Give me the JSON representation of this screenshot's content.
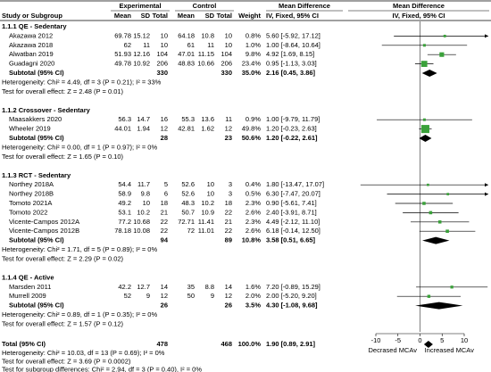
{
  "header": {
    "experimental": "Experimental",
    "control": "Control",
    "md_col": "Mean Difference",
    "md_plot": "Mean Difference",
    "columns": [
      "Study or Subgroup",
      "Mean",
      "SD",
      "Total",
      "Mean",
      "SD",
      "Total",
      "Weight",
      "IV, Fixed, 95% CI",
      "IV, Fixed, 95% CI"
    ]
  },
  "groups": [
    {
      "title": "1.1.1 QE - Sedentary",
      "studies": [
        {
          "name": "Akazawa 2012",
          "exp": [
            69.78,
            15.12,
            10
          ],
          "ctl": [
            64.18,
            10.8,
            10
          ],
          "weight": {
            "value": 0.8,
            "label": "0.8%"
          },
          "md": {
            "value": 5.6,
            "label": "5.60 [-5.92, 17.12]"
          },
          "ci": [
            -5.92,
            17.12
          ]
        },
        {
          "name": "Akazawa 2018",
          "exp": [
            62,
            11,
            10
          ],
          "ctl": [
            61,
            11,
            10
          ],
          "weight": {
            "value": 1.0,
            "label": "1.0%"
          },
          "md": {
            "value": 1,
            "label": "1.00 [-8.64, 10.64]"
          },
          "ci": [
            -8.64,
            10.64
          ]
        },
        {
          "name": "Alwatban 2019",
          "exp": [
            51.93,
            12.16,
            104
          ],
          "ctl": [
            47.01,
            11.15,
            104
          ],
          "weight": {
            "value": 9.8,
            "label": "9.8%"
          },
          "md": {
            "value": 4.92,
            "label": "4.92 [1.69, 8.15]"
          },
          "ci": [
            1.69,
            8.15
          ]
        },
        {
          "name": "Guadagni 2020",
          "exp": [
            49.78,
            10.92,
            206
          ],
          "ctl": [
            48.83,
            10.66,
            206
          ],
          "weight": {
            "value": 23.4,
            "label": "23.4%"
          },
          "md": {
            "value": 0.95,
            "label": "0.95 [-1.13, 3.03]"
          },
          "ci": [
            -1.13,
            3.03
          ]
        }
      ],
      "subtotal": {
        "label": "Subtotal (95% CI)",
        "exp_total": 330,
        "ctl_total": 330,
        "weight": {
          "value": 35.0,
          "label": "35.0%"
        },
        "md": {
          "value": 2.16,
          "label": "2.16 [0.45, 3.86]"
        },
        "ci": [
          0.45,
          3.86
        ]
      },
      "heterogeneity": "Heterogeneity: Chi² = 4.49, df = 3 (P = 0.21); I² = 33%",
      "overall_test": "Test for overall effect: Z = 2.48 (P = 0.01)"
    },
    {
      "title": "1.1.2 Crossover - Sedentary",
      "studies": [
        {
          "name": "Maasakkers 2020",
          "exp": [
            56.3,
            14.7,
            16
          ],
          "ctl": [
            55.3,
            13.6,
            11
          ],
          "weight": {
            "value": 0.9,
            "label": "0.9%"
          },
          "md": {
            "value": 1,
            "label": "1.00 [-9.79, 11.79]"
          },
          "ci": [
            -9.79,
            11.79
          ]
        },
        {
          "name": "Wheeler 2019",
          "exp": [
            44.01,
            1.94,
            12
          ],
          "ctl": [
            42.81,
            1.62,
            12
          ],
          "weight": {
            "value": 49.8,
            "label": "49.8%"
          },
          "md": {
            "value": 1.2,
            "label": "1.20 [-0.23, 2.63]"
          },
          "ci": [
            -0.23,
            2.63
          ]
        }
      ],
      "subtotal": {
        "label": "Subtotal (95% CI)",
        "exp_total": 28,
        "ctl_total": 23,
        "weight": {
          "value": 50.6,
          "label": "50.6%"
        },
        "md": {
          "value": 1.2,
          "label": "1.20 [-0.22, 2.61]"
        },
        "ci": [
          -0.22,
          2.61
        ]
      },
      "heterogeneity": "Heterogeneity: Chi² = 0.00, df = 1 (P = 0.97); I² = 0%",
      "overall_test": "Test for overall effect: Z = 1.65 (P = 0.10)"
    },
    {
      "title": "1.1.3 RCT - Sedentary",
      "studies": [
        {
          "name": "Northey 2018A",
          "exp": [
            54.4,
            11.7,
            5
          ],
          "ctl": [
            52.6,
            10,
            3
          ],
          "weight": {
            "value": 0.4,
            "label": "0.4%"
          },
          "md": {
            "value": 1.8,
            "label": "1.80 [-13.47, 17.07]"
          },
          "ci": [
            -13.47,
            17.07
          ]
        },
        {
          "name": "Northey 2018B",
          "exp": [
            58.9,
            9.8,
            6
          ],
          "ctl": [
            52.6,
            10,
            3
          ],
          "weight": {
            "value": 0.5,
            "label": "0.5%"
          },
          "md": {
            "value": 6.3,
            "label": "6.30 [-7.47, 20.07]"
          },
          "ci": [
            -7.47,
            20.07
          ]
        },
        {
          "name": "Tomoto 2021A",
          "exp": [
            49.2,
            10,
            18
          ],
          "ctl": [
            48.3,
            10.2,
            18
          ],
          "weight": {
            "value": 2.3,
            "label": "2.3%"
          },
          "md": {
            "value": 0.9,
            "label": "0.90 [-5.61, 7.41]"
          },
          "ci": [
            -5.61,
            7.41
          ]
        },
        {
          "name": "Tomoto 2022",
          "exp": [
            53.1,
            10.2,
            21
          ],
          "ctl": [
            50.7,
            10.9,
            22
          ],
          "weight": {
            "value": 2.6,
            "label": "2.6%"
          },
          "md": {
            "value": 2.4,
            "label": "2.40 [-3.91, 8.71]"
          },
          "ci": [
            -3.91,
            8.71
          ]
        },
        {
          "name": "Vicente-Campos 2012A",
          "exp": [
            77.2,
            10.68,
            22
          ],
          "ctl": [
            72.71,
            11.41,
            21
          ],
          "weight": {
            "value": 2.3,
            "label": "2.3%"
          },
          "md": {
            "value": 4.49,
            "label": "4.49 [-2.12, 11.10]"
          },
          "ci": [
            -2.12,
            11.1
          ]
        },
        {
          "name": "Vicente-Campos 2012B",
          "exp": [
            78.18,
            10.08,
            22
          ],
          "ctl": [
            72,
            11.01,
            22
          ],
          "weight": {
            "value": 2.6,
            "label": "2.6%"
          },
          "md": {
            "value": 6.18,
            "label": "6.18 [-0.14, 12.50]"
          },
          "ci": [
            -0.14,
            12.5
          ]
        }
      ],
      "subtotal": {
        "label": "Subtotal (95% CI)",
        "exp_total": 94,
        "ctl_total": 89,
        "weight": {
          "value": 10.8,
          "label": "10.8%"
        },
        "md": {
          "value": 3.58,
          "label": "3.58 [0.51, 6.65]"
        },
        "ci": [
          0.51,
          6.65
        ]
      },
      "heterogeneity": "Heterogeneity: Chi² = 1.71, df = 5 (P = 0.89); I² = 0%",
      "overall_test": "Test for overall effect: Z = 2.29 (P = 0.02)"
    },
    {
      "title": "1.1.4 QE - Active",
      "studies": [
        {
          "name": "Marsden 2011",
          "exp": [
            42.2,
            12.7,
            14
          ],
          "ctl": [
            35,
            8.8,
            14
          ],
          "weight": {
            "value": 1.6,
            "label": "1.6%"
          },
          "md": {
            "value": 7.2,
            "label": "7.20 [-0.89, 15.29]"
          },
          "ci": [
            -0.89,
            15.29
          ]
        },
        {
          "name": "Murrell 2009",
          "exp": [
            52,
            9,
            12
          ],
          "ctl": [
            50,
            9,
            12
          ],
          "weight": {
            "value": 2.0,
            "label": "2.0%"
          },
          "md": {
            "value": 2,
            "label": "2.00 [-5.20, 9.20]"
          },
          "ci": [
            -5.2,
            9.2
          ]
        }
      ],
      "subtotal": {
        "label": "Subtotal (95% CI)",
        "exp_total": 26,
        "ctl_total": 26,
        "weight": {
          "value": 3.5,
          "label": "3.5%"
        },
        "md": {
          "value": 4.3,
          "label": "4.30 [-1.08, 9.68]"
        },
        "ci": [
          -1.08,
          9.68
        ]
      },
      "heterogeneity": "Heterogeneity: Chi² = 0.89, df = 1 (P = 0.35); I² = 0%",
      "overall_test": "Test for overall effect: Z = 1.57 (P = 0.12)"
    }
  ],
  "total": {
    "label": "Total (95% CI)",
    "exp_total": 478,
    "ctl_total": 468,
    "weight": {
      "value": 100.0,
      "label": "100.0%"
    },
    "md": {
      "value": 1.9,
      "label": "1.90 [0.89, 2.91]"
    },
    "ci": [
      0.89,
      2.91
    ]
  },
  "total_heterogeneity": "Heterogeneity: Chi² = 10.03, df = 13 (P = 0.69); I² = 0%",
  "total_test": "Test for overall effect: Z = 3.69 (P = 0.0002)",
  "subgroup_test": "Test for subgroup differences: Chi² = 2.94, df = 3 (P = 0.40), I² = 0%",
  "plot": {
    "xticks": [
      -10,
      -5,
      0,
      5,
      10
    ],
    "left_label": "Decrased MCAv",
    "right_label": "Increased MCAv",
    "square_color": "#3aa13a"
  }
}
